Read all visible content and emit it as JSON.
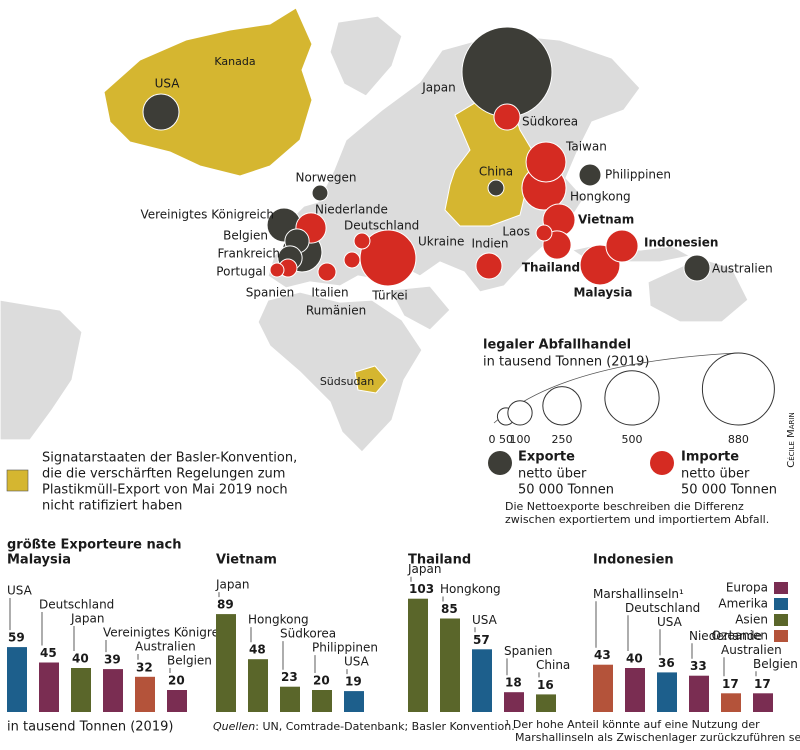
{
  "map": {
    "bubbles": [
      {
        "label": "USA",
        "value": 220,
        "color": "#3d3d37"
      },
      {
        "label": "Japan",
        "value": 1375,
        "color": "#3d3d37"
      },
      {
        "label": "Südkorea",
        "value": 115,
        "color": "#d52b22"
      },
      {
        "label": "Taiwan",
        "value": 270,
        "color": "#d52b22"
      },
      {
        "label": "Philippinen",
        "value": 82,
        "color": "#3d3d37"
      },
      {
        "label": "China",
        "value": 43,
        "color": "#3d3d37"
      },
      {
        "label": "Hongkong",
        "value": 330,
        "color": "#d52b22"
      },
      {
        "label": "Vietnam",
        "value": 175,
        "color": "#d52b22"
      },
      {
        "label": "Laos",
        "value": 43,
        "color": "#d52b22"
      },
      {
        "label": "Thailand",
        "value": 135,
        "color": "#d52b22"
      },
      {
        "label": "Indonesien",
        "value": 175,
        "color": "#d52b22"
      },
      {
        "label": "Malaysia",
        "value": 270,
        "color": "#d52b22"
      },
      {
        "label": "Australien",
        "value": 115,
        "color": "#3d3d37"
      },
      {
        "label": "Indien",
        "value": 115,
        "color": "#d52b22"
      },
      {
        "label": "Norwegen",
        "value": 43,
        "color": "#3d3d37"
      },
      {
        "label": "Vereinigtes Königreich",
        "value": 195,
        "color": "#3d3d37"
      },
      {
        "label": "Niederlande",
        "value": 155,
        "color": "#d52b22"
      },
      {
        "label": "Belgien",
        "value": 100,
        "color": "#3d3d37"
      },
      {
        "label": "Deutschland",
        "value": 270,
        "color": "#3d3d37"
      },
      {
        "label": "Ukraine",
        "value": 43,
        "color": "#d52b22"
      },
      {
        "label": "Frankreich",
        "value": 100,
        "color": "#3d3d37"
      },
      {
        "label": "Portugal",
        "value": 33,
        "color": "#d52b22"
      },
      {
        "label": "Spanien",
        "value": 55,
        "color": "#d52b22"
      },
      {
        "label": "Italien",
        "value": 55,
        "color": "#d52b22"
      },
      {
        "label": "Rumänien",
        "value": 43,
        "color": "#d52b22"
      },
      {
        "label": "Türkei",
        "value": 530,
        "color": "#d52b22"
      }
    ],
    "region_labels": [
      "Kanada",
      "Südsudan"
    ]
  },
  "size_legend": {
    "title": "legaler Abfallhandel",
    "subtitle": "in tausend Tonnen (2019)",
    "ticks": [
      0,
      50,
      100,
      250,
      500,
      880
    ]
  },
  "color_legend": [
    {
      "title": "Exporte",
      "lines": [
        "netto über",
        "50 000 Tonnen"
      ],
      "color": "#3d3d37"
    },
    {
      "title": "Importe",
      "lines": [
        "netto über",
        "50 000 Tonnen"
      ],
      "color": "#d52b22"
    }
  ],
  "note": [
    "Die Nettoexporte beschreiben die Differenz",
    "zwischen exportiertem und importiertem Abfall."
  ],
  "signatory_legend": {
    "color": "#d5b630",
    "lines": [
      "Signatarstaaten der Basler-Konvention,",
      "die die verschärften Regelungen zum",
      "Plastikmüll-Export von Mai 2019 noch",
      "nicht ratifiziert haben"
    ]
  },
  "credit": "Cécile Marin",
  "charts_heading": "größte Exporteure nach",
  "region_legend": [
    {
      "name": "Europa",
      "color": "#7a2d52"
    },
    {
      "name": "Amerika",
      "color": "#1d5f8c"
    },
    {
      "name": "Asien",
      "color": "#5a662a"
    },
    {
      "name": "Ozeanien",
      "color": "#b4533a"
    }
  ],
  "chart_data": [
    {
      "type": "bar",
      "title": "Malaysia",
      "categories": [
        "USA",
        "Deutschland",
        "Japan",
        "Vereinigtes Königreich",
        "Australien",
        "Belgien"
      ],
      "values": [
        59,
        45,
        40,
        39,
        32,
        20
      ],
      "colors": [
        "#1d5f8c",
        "#7a2d52",
        "#5a662a",
        "#7a2d52",
        "#b4533a",
        "#7a2d52"
      ]
    },
    {
      "type": "bar",
      "title": "Vietnam",
      "categories": [
        "Japan",
        "Hongkong",
        "Südkorea",
        "Philippinen",
        "USA"
      ],
      "values": [
        89,
        48,
        23,
        20,
        19
      ],
      "colors": [
        "#5a662a",
        "#5a662a",
        "#5a662a",
        "#5a662a",
        "#1d5f8c"
      ]
    },
    {
      "type": "bar",
      "title": "Thailand",
      "categories": [
        "Japan",
        "Hongkong",
        "USA",
        "Spanien",
        "China"
      ],
      "values": [
        103,
        85,
        57,
        18,
        16
      ],
      "colors": [
        "#5a662a",
        "#5a662a",
        "#1d5f8c",
        "#7a2d52",
        "#5a662a"
      ]
    },
    {
      "type": "bar",
      "title": "Indonesien",
      "categories": [
        "Marshallinseln¹",
        "Deutschland",
        "USA",
        "Niederlande",
        "Australien",
        "Belgien"
      ],
      "values": [
        43,
        40,
        36,
        33,
        17,
        17
      ],
      "colors": [
        "#b4533a",
        "#7a2d52",
        "#1d5f8c",
        "#7a2d52",
        "#b4533a",
        "#7a2d52"
      ]
    }
  ],
  "unit": "in tausend Tonnen (2019)",
  "sources": {
    "label": "Quellen",
    "text": ": UN, Comtrade-Datenbank; Basler Konvention."
  },
  "footnote": [
    "¹ Der hohe Anteil könnte auf eine Nutzung der",
    "Marshallinseln als Zwischenlager zurückzuführen sein."
  ]
}
